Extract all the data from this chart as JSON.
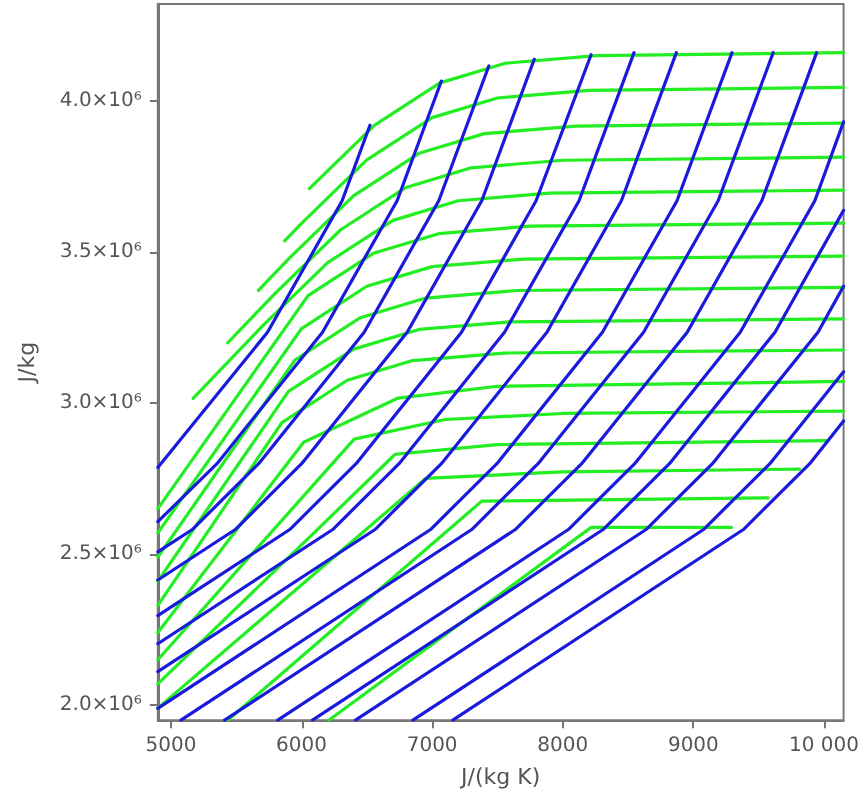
{
  "chart_data": {
    "type": "line",
    "xlabel": "J/(kg K)",
    "ylabel": "J/kg",
    "xlim": [
      4900,
      10150
    ],
    "ylim": [
      1950000,
      4320000
    ],
    "xticks": [
      5000,
      6000,
      7000,
      8000,
      9000,
      {
        "value": 10000,
        "label": "10 000"
      }
    ],
    "yticks": [
      {
        "value": 2000000,
        "label": "2.0×10⁶"
      },
      {
        "value": 2500000,
        "label": "2.5×10⁶"
      },
      {
        "value": 3000000,
        "label": "3.0×10⁶"
      },
      {
        "value": 3500000,
        "label": "3.5×10⁶"
      },
      {
        "value": 4000000,
        "label": "4.0×10⁶"
      }
    ],
    "marker": "none",
    "line_style": "solid",
    "series": [
      {
        "color": "#22ee22",
        "x": [
          6060,
          6560,
          7060,
          7560,
          8260,
          10150
        ],
        "values": [
          3709000,
          3919000,
          4059000,
          4124000,
          4149000,
          4159000
        ]
      },
      {
        "color": "#22ee22",
        "x": [
          5871,
          6000,
          6500,
          7000,
          7500,
          8200,
          10150
        ],
        "values": [
          3536000,
          3594000,
          3804000,
          3944000,
          4009000,
          4034000,
          4044000
        ]
      },
      {
        "color": "#22ee22",
        "x": [
          5670,
          5900,
          6400,
          6900,
          7400,
          8100,
          10150
        ],
        "values": [
          3372000,
          3476000,
          3686000,
          3826000,
          3891000,
          3916000,
          3926000
        ]
      },
      {
        "color": "#22ee22",
        "x": [
          5435,
          5800,
          6300,
          6800,
          7300,
          8000,
          10150
        ],
        "values": [
          3199000,
          3363000,
          3573000,
          3713000,
          3778000,
          3803000,
          3813000
        ]
      },
      {
        "color": "#22ee22",
        "x": [
          5170,
          5700,
          6200,
          6700,
          7200,
          7900,
          10150
        ],
        "values": [
          3015000,
          3254000,
          3464000,
          3604000,
          3669000,
          3694000,
          3704000
        ]
      },
      {
        "color": "#22ee22",
        "x": [
          4900,
          6050,
          6550,
          7050,
          7750,
          10150
        ],
        "values": [
          2650000,
          3355000,
          3495000,
          3560000,
          3585000,
          3595000
        ]
      },
      {
        "color": "#22ee22",
        "x": [
          4900,
          6000,
          6500,
          7000,
          7700,
          10150
        ],
        "values": [
          2570000,
          3246000,
          3386000,
          3451000,
          3476000,
          3486000
        ]
      },
      {
        "color": "#22ee22",
        "x": [
          4900,
          5950,
          6450,
          6950,
          7650,
          10150
        ],
        "values": [
          2490000,
          3142000,
          3282000,
          3347000,
          3372000,
          3382000
        ]
      },
      {
        "color": "#22ee22",
        "x": [
          4900,
          5900,
          6400,
          6900,
          7600,
          10150
        ],
        "values": [
          2410000,
          3038000,
          3178000,
          3243000,
          3268000,
          3278000
        ]
      },
      {
        "color": "#22ee22",
        "x": [
          4900,
          5850,
          6350,
          6850,
          7550,
          10150
        ],
        "values": [
          2330000,
          2935000,
          3075000,
          3140000,
          3165000,
          3175000
        ]
      },
      {
        "color": "#22ee22",
        "x": [
          4900,
          6016,
          6740,
          7500,
          10150
        ],
        "values": [
          2240000,
          2870000,
          3016000,
          3055000,
          3071000
        ]
      },
      {
        "color": "#22ee22",
        "x": [
          4900,
          6403,
          7100,
          8000,
          10150
        ],
        "values": [
          2150000,
          2880000,
          2945000,
          2965000,
          2973000
        ]
      },
      {
        "color": "#22ee22",
        "x": [
          4900,
          6717,
          7500,
          10032
        ],
        "values": [
          2070000,
          2830000,
          2862000,
          2875000
        ]
      },
      {
        "color": "#22ee22",
        "x": [
          4900,
          6950,
          8000,
          9814
        ],
        "values": [
          1990000,
          2750000,
          2772000,
          2781000
        ]
      },
      {
        "color": "#22ee22",
        "x": [
          5435,
          7380,
          9572
        ],
        "values": [
          1950000,
          2675000,
          2686000
        ]
      },
      {
        "color": "#22ee22",
        "x": [
          6209,
          8217,
          9291
        ],
        "values": [
          1950000,
          2588000,
          2588000
        ]
      },
      {
        "color": "#1a1add",
        "x": [
          4900,
          5740,
          6311,
          6524
        ],
        "values": [
          2786000,
          3234000,
          3669000,
          3919000
        ]
      },
      {
        "color": "#1a1add",
        "x": [
          4900,
          5353,
          6161,
          6732,
          7071
        ],
        "values": [
          2607000,
          2799000,
          3234000,
          3669000,
          4065000
        ]
      },
      {
        "color": "#1a1add",
        "x": [
          4900,
          5164,
          5672,
          6480,
          7051,
          7434
        ],
        "values": [
          2507000,
          2581000,
          2799000,
          3234000,
          3669000,
          4115000
        ]
      },
      {
        "color": "#1a1add",
        "x": [
          4900,
          5493,
          6001,
          6809,
          7380,
          7782
        ],
        "values": [
          2414000,
          2581000,
          2799000,
          3234000,
          3669000,
          4137000
        ]
      },
      {
        "color": "#1a1add",
        "x": [
          4900,
          5910,
          6418,
          7225,
          7796,
          8217
        ],
        "values": [
          2296000,
          2581000,
          2799000,
          3234000,
          3669000,
          4152000
        ]
      },
      {
        "color": "#1a1add",
        "x": [
          4900,
          6239,
          6747,
          7554,
          8125,
          8546
        ],
        "values": [
          2203000,
          2581000,
          2799000,
          3234000,
          3669000,
          4159000
        ]
      },
      {
        "color": "#1a1add",
        "x": [
          4900,
          6563,
          7071,
          7879,
          8449,
          8870
        ],
        "values": [
          2111000,
          2581000,
          2799000,
          3234000,
          3669000,
          4159000
        ]
      },
      {
        "color": "#1a1add",
        "x": [
          4900,
          6988,
          7496,
          8304,
          8875,
          9296
        ],
        "values": [
          1989000,
          2581000,
          2799000,
          3234000,
          3669000,
          4159000
        ]
      },
      {
        "color": "#1a1add",
        "x": [
          5077,
          7303,
          7811,
          8619,
          9190,
          9611
        ],
        "values": [
          1950000,
          2581000,
          2799000,
          3234000,
          3669000,
          4159000
        ]
      },
      {
        "color": "#1a1add",
        "x": [
          5411,
          7637,
          8145,
          8953,
          9524,
          9944
        ],
        "values": [
          1950000,
          2581000,
          2799000,
          3234000,
          3669000,
          4159000
        ]
      },
      {
        "color": "#1a1add",
        "x": [
          5818,
          8043,
          8551,
          9359,
          9930,
          10150
        ],
        "values": [
          1950000,
          2581000,
          2799000,
          3234000,
          3669000,
          3930000
        ]
      },
      {
        "color": "#1a1add",
        "x": [
          6084,
          8309,
          8817,
          9625,
          10150
        ],
        "values": [
          1950000,
          2581000,
          2799000,
          3234000,
          3637000
        ]
      },
      {
        "color": "#1a1add",
        "x": [
          6413,
          8638,
          9146,
          9954,
          10150
        ],
        "values": [
          1950000,
          2581000,
          2799000,
          3234000,
          3386000
        ]
      },
      {
        "color": "#1a1add",
        "x": [
          6853,
          9078,
          9586,
          10150
        ],
        "values": [
          1950000,
          2581000,
          2799000,
          3103000
        ]
      },
      {
        "color": "#1a1add",
        "x": [
          7158,
          9383,
          9891,
          10150
        ],
        "values": [
          1950000,
          2581000,
          2799000,
          2940000
        ]
      }
    ]
  }
}
